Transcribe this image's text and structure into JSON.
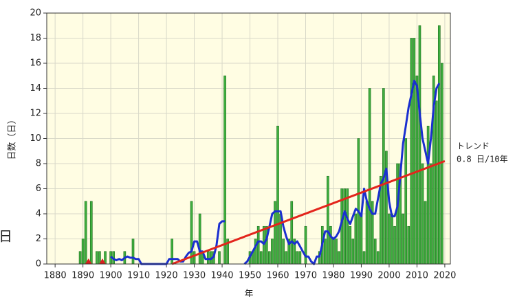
{
  "side_label": "日",
  "chart_data": {
    "type": "bar",
    "ylabel": "日数（日）",
    "xlabel": "年",
    "annotation": [
      "トレンド",
      "0.8 日/10年"
    ],
    "xlim": [
      1877,
      2022
    ],
    "ylim": [
      0,
      20
    ],
    "xticks": [
      1880,
      1890,
      1900,
      1910,
      1920,
      1930,
      1940,
      1950,
      1960,
      1970,
      1980,
      1990,
      2000,
      2010,
      2020
    ],
    "yticks": [
      0,
      2,
      4,
      6,
      8,
      10,
      12,
      14,
      16,
      18,
      20
    ],
    "grid": true,
    "background": "#fffde3",
    "color": "#3fae3f",
    "edge_color": "#1d6e1d",
    "x": [
      1889,
      1890,
      1891,
      1892,
      1893,
      1894,
      1895,
      1896,
      1897,
      1898,
      1899,
      1900,
      1901,
      1902,
      1903,
      1904,
      1905,
      1906,
      1907,
      1908,
      1909,
      1910,
      1911,
      1912,
      1913,
      1914,
      1915,
      1916,
      1917,
      1918,
      1919,
      1920,
      1921,
      1922,
      1923,
      1924,
      1925,
      1926,
      1927,
      1928,
      1929,
      1930,
      1931,
      1932,
      1933,
      1934,
      1935,
      1936,
      1937,
      1938,
      1939,
      1940,
      1941,
      1942,
      1943,
      1944,
      1945,
      1946,
      1947,
      1948,
      1949,
      1950,
      1951,
      1952,
      1953,
      1954,
      1955,
      1956,
      1957,
      1958,
      1959,
      1960,
      1961,
      1962,
      1963,
      1964,
      1965,
      1966,
      1967,
      1968,
      1969,
      1970,
      1971,
      1972,
      1973,
      1974,
      1975,
      1976,
      1977,
      1978,
      1979,
      1980,
      1981,
      1982,
      1983,
      1984,
      1985,
      1986,
      1987,
      1988,
      1989,
      1990,
      1991,
      1992,
      1993,
      1994,
      1995,
      1996,
      1997,
      1998,
      1999,
      2000,
      2001,
      2002,
      2003,
      2004,
      2005,
      2006,
      2007,
      2008,
      2009,
      2010,
      2011,
      2012,
      2013,
      2014,
      2015,
      2016,
      2017,
      2018,
      2019
    ],
    "values": [
      1,
      2,
      5,
      0,
      5,
      0,
      1,
      1,
      0,
      1,
      0,
      1,
      1,
      0,
      0,
      0,
      1,
      0,
      0,
      2,
      0,
      0,
      0,
      0,
      0,
      0,
      0,
      0,
      0,
      0,
      0,
      0,
      0,
      2,
      0,
      0,
      0,
      0,
      0,
      0,
      5,
      1,
      0,
      4,
      1,
      0,
      1,
      1,
      1,
      0,
      1,
      0,
      15,
      2,
      0,
      0,
      0,
      0,
      0,
      0,
      0,
      1,
      1,
      2,
      3,
      1,
      3,
      3,
      1,
      2,
      5,
      11,
      4,
      2,
      1,
      2,
      5,
      2,
      1,
      1,
      0,
      3,
      0,
      0,
      0,
      0,
      1,
      3,
      2,
      7,
      3,
      2,
      2,
      1,
      6,
      6,
      6,
      3,
      2,
      4,
      10,
      4,
      1,
      5,
      14,
      5,
      2,
      1,
      7,
      14,
      9,
      4,
      4,
      3,
      8,
      8,
      4,
      10,
      3,
      18,
      18,
      15,
      19,
      8,
      5,
      11,
      8,
      15,
      13,
      19,
      16
    ],
    "line": {
      "color": "#1a2fd0",
      "x": [
        1900,
        1901,
        1902,
        1903,
        1904,
        1905,
        1906,
        1907,
        1908,
        1909,
        1910,
        1911,
        1912,
        1913,
        1914,
        1915,
        1916,
        1917,
        1918,
        1919,
        1920,
        1921,
        1922,
        1923,
        1924,
        1925,
        1926,
        1927,
        1928,
        1929,
        1930,
        1931,
        1932,
        1933,
        1934,
        1935,
        1936,
        1937,
        1938,
        1939,
        1940,
        1941,
        1942,
        1943,
        1944,
        1945,
        1946,
        1947,
        1948,
        1949,
        1950,
        1951,
        1952,
        1953,
        1954,
        1955,
        1956,
        1957,
        1958,
        1959,
        1960,
        1961,
        1962,
        1963,
        1964,
        1965,
        1966,
        1967,
        1968,
        1969,
        1970,
        1971,
        1972,
        1973,
        1974,
        1975,
        1976,
        1977,
        1978,
        1979,
        1980,
        1981,
        1982,
        1983,
        1984,
        1985,
        1986,
        1987,
        1988,
        1989,
        1990,
        1991,
        1992,
        1993,
        1994,
        1995,
        1996,
        1997,
        1998,
        1999,
        2000,
        2001,
        2002,
        2003,
        2004,
        2005,
        2006,
        2007,
        2008,
        2009,
        2010,
        2011,
        2012,
        2013,
        2014,
        2015,
        2016,
        2017,
        2018
      ],
      "values": [
        0.6,
        0.4,
        0.3,
        0.4,
        0.3,
        0.5,
        0.6,
        0.5,
        0.5,
        0.4,
        0.4,
        0,
        0,
        0,
        0,
        0,
        0,
        0,
        0,
        0,
        0,
        0.4,
        0.4,
        0.4,
        0.4,
        0.2,
        0.2,
        0.6,
        0.9,
        1,
        1.8,
        1.8,
        1,
        1,
        0.4,
        0.4,
        0.4,
        0.6,
        1.5,
        3.2,
        3.4,
        3.4,
        null,
        null,
        null,
        null,
        null,
        null,
        0,
        0.2,
        0.6,
        1,
        1.4,
        1.8,
        1.8,
        1.6,
        2,
        3,
        4,
        4.2,
        4.2,
        4.2,
        3,
        2.2,
        1.6,
        1.8,
        1.6,
        1.8,
        1.4,
        1,
        0.6,
        0.6,
        0.2,
        0,
        0.6,
        0.6,
        1.6,
        2.6,
        2.6,
        2.2,
        2,
        2.2,
        2.6,
        3.4,
        4.2,
        3.6,
        3.2,
        3.8,
        4.4,
        4.2,
        3.8,
        6,
        5,
        4.4,
        4,
        4,
        5.2,
        6.4,
        6.8,
        7.6,
        5,
        3.8,
        3.8,
        4.6,
        7,
        9.6,
        11,
        12.5,
        13.5,
        14.6,
        14.2,
        12,
        10,
        9,
        8,
        10,
        12.5,
        14,
        14.4
      ]
    },
    "trend": {
      "color": "#e3251c",
      "x": [
        1922,
        2020
      ],
      "values": [
        0,
        8.2
      ]
    },
    "missing_x": [
      1892,
      1897
    ],
    "missing_color": "#d81e1e"
  }
}
